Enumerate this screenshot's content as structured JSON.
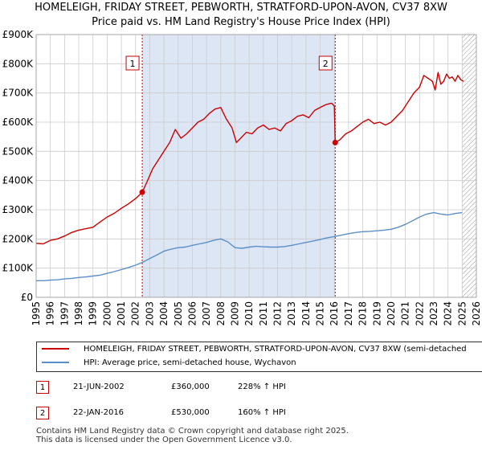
{
  "title_line1": "HOMELEIGH, FRIDAY STREET, PEBWORTH, STRATFORD-UPON-AVON, CV37 8XW",
  "title_line2": "Price paid vs. HM Land Registry's House Price Index (HPI)",
  "colors": {
    "property": "#cc0000",
    "hpi": "#5b8ec9",
    "shade": "#dde6f5",
    "grid": "#cccccc"
  },
  "chart_data": {
    "type": "line",
    "xlim": [
      1995,
      2026
    ],
    "ylim": [
      0,
      900000
    ],
    "y_ticks": [
      {
        "value": 0,
        "label": "£0"
      },
      {
        "value": 100000,
        "label": "£100K"
      },
      {
        "value": 200000,
        "label": "£200K"
      },
      {
        "value": 300000,
        "label": "£300K"
      },
      {
        "value": 400000,
        "label": "£400K"
      },
      {
        "value": 500000,
        "label": "£500K"
      },
      {
        "value": 600000,
        "label": "£600K"
      },
      {
        "value": 700000,
        "label": "£700K"
      },
      {
        "value": 800000,
        "label": "£800K"
      },
      {
        "value": 900000,
        "label": "£900K"
      }
    ],
    "x_ticks": [
      "1995",
      "1996",
      "1997",
      "1998",
      "1999",
      "2000",
      "2001",
      "2002",
      "2003",
      "2004",
      "2005",
      "2006",
      "2007",
      "2008",
      "2009",
      "2010",
      "2011",
      "2012",
      "2013",
      "2014",
      "2015",
      "2016",
      "2017",
      "2018",
      "2019",
      "2020",
      "2021",
      "2022",
      "2023",
      "2024",
      "2025",
      "2026"
    ],
    "shaded_range": [
      2002.47,
      2016.06
    ],
    "hatched_from": 2025.0,
    "series": [
      {
        "name": "HOMELEIGH, FRIDAY STREET, PEBWORTH, STRATFORD-UPON-AVON, CV37 8XW (semi-detached",
        "x": [
          1995.0,
          1995.5,
          1996.0,
          1996.5,
          1997.0,
          1997.5,
          1998.0,
          1998.5,
          1999.0,
          1999.5,
          2000.0,
          2000.5,
          2001.0,
          2001.5,
          2002.0,
          2002.47,
          2002.8,
          2003.2,
          2003.6,
          2004.0,
          2004.4,
          2004.8,
          2005.2,
          2005.6,
          2006.0,
          2006.4,
          2006.8,
          2007.2,
          2007.6,
          2008.0,
          2008.4,
          2008.8,
          2009.1,
          2009.4,
          2009.8,
          2010.2,
          2010.6,
          2011.0,
          2011.4,
          2011.8,
          2012.2,
          2012.6,
          2013.0,
          2013.4,
          2013.8,
          2014.2,
          2014.6,
          2015.0,
          2015.4,
          2015.8,
          2016.0,
          2016.06,
          2016.4,
          2016.8,
          2017.2,
          2017.6,
          2018.0,
          2018.4,
          2018.8,
          2019.2,
          2019.6,
          2020.0,
          2020.4,
          2020.8,
          2021.2,
          2021.6,
          2022.0,
          2022.3,
          2022.6,
          2022.9,
          2023.1,
          2023.3,
          2023.5,
          2023.7,
          2023.9,
          2024.1,
          2024.3,
          2024.5,
          2024.7,
          2024.9,
          2025.1
        ],
        "y": [
          185000,
          183000,
          195000,
          200000,
          210000,
          222000,
          230000,
          235000,
          240000,
          258000,
          275000,
          288000,
          305000,
          320000,
          338000,
          360000,
          395000,
          440000,
          470000,
          500000,
          530000,
          575000,
          545000,
          560000,
          580000,
          600000,
          610000,
          630000,
          645000,
          650000,
          610000,
          580000,
          530000,
          545000,
          565000,
          560000,
          580000,
          590000,
          575000,
          580000,
          570000,
          595000,
          605000,
          620000,
          625000,
          615000,
          640000,
          650000,
          660000,
          665000,
          655000,
          530000,
          540000,
          560000,
          570000,
          585000,
          600000,
          610000,
          595000,
          600000,
          590000,
          600000,
          620000,
          640000,
          670000,
          700000,
          720000,
          760000,
          750000,
          740000,
          710000,
          770000,
          730000,
          740000,
          765000,
          750000,
          755000,
          740000,
          760000,
          745000,
          740000
        ],
        "color": "#cc0000"
      },
      {
        "name": "HPI: Average price, semi-detached house, Wychavon",
        "x": [
          1995.0,
          1995.5,
          1996.0,
          1996.5,
          1997.0,
          1997.5,
          1998.0,
          1998.5,
          1999.0,
          1999.5,
          2000.0,
          2000.5,
          2001.0,
          2001.5,
          2002.0,
          2002.5,
          2003.0,
          2003.5,
          2004.0,
          2004.5,
          2005.0,
          2005.5,
          2006.0,
          2006.5,
          2007.0,
          2007.5,
          2008.0,
          2008.5,
          2009.0,
          2009.5,
          2010.0,
          2010.5,
          2011.0,
          2011.5,
          2012.0,
          2012.5,
          2013.0,
          2013.5,
          2014.0,
          2014.5,
          2015.0,
          2015.5,
          2016.0,
          2016.5,
          2017.0,
          2017.5,
          2018.0,
          2018.5,
          2019.0,
          2019.5,
          2020.0,
          2020.5,
          2021.0,
          2021.5,
          2022.0,
          2022.5,
          2023.0,
          2023.5,
          2024.0,
          2024.5,
          2025.0
        ],
        "y": [
          57000,
          57000,
          59000,
          60000,
          63000,
          65000,
          68000,
          70000,
          73000,
          76000,
          82000,
          88000,
          95000,
          102000,
          110000,
          120000,
          133000,
          145000,
          158000,
          165000,
          170000,
          172000,
          178000,
          183000,
          188000,
          195000,
          200000,
          190000,
          170000,
          168000,
          172000,
          175000,
          173000,
          172000,
          172000,
          174000,
          178000,
          183000,
          188000,
          193000,
          198000,
          204000,
          208000,
          213000,
          218000,
          222000,
          225000,
          226000,
          228000,
          230000,
          233000,
          240000,
          250000,
          262000,
          275000,
          285000,
          290000,
          285000,
          282000,
          287000,
          290000
        ],
        "color": "#5b8ec9"
      }
    ],
    "sales": [
      {
        "label": "1",
        "x": 2002.47,
        "y": 360000
      },
      {
        "label": "2",
        "x": 2016.06,
        "y": 530000
      }
    ]
  },
  "legend": {
    "property_label": "HOMELEIGH, FRIDAY STREET, PEBWORTH, STRATFORD-UPON-AVON, CV37 8XW (semi-detached",
    "hpi_label": "HPI: Average price, semi-detached house, Wychavon"
  },
  "transactions": [
    {
      "num": "1",
      "date": "21-JUN-2002",
      "price": "£360,000",
      "hpi": "228% ↑ HPI"
    },
    {
      "num": "2",
      "date": "22-JAN-2016",
      "price": "£530,000",
      "hpi": "160% ↑ HPI"
    }
  ],
  "footer": {
    "line1": "Contains HM Land Registry data © Crown copyright and database right 2025.",
    "line2": "This data is licensed under the Open Government Licence v3.0."
  }
}
